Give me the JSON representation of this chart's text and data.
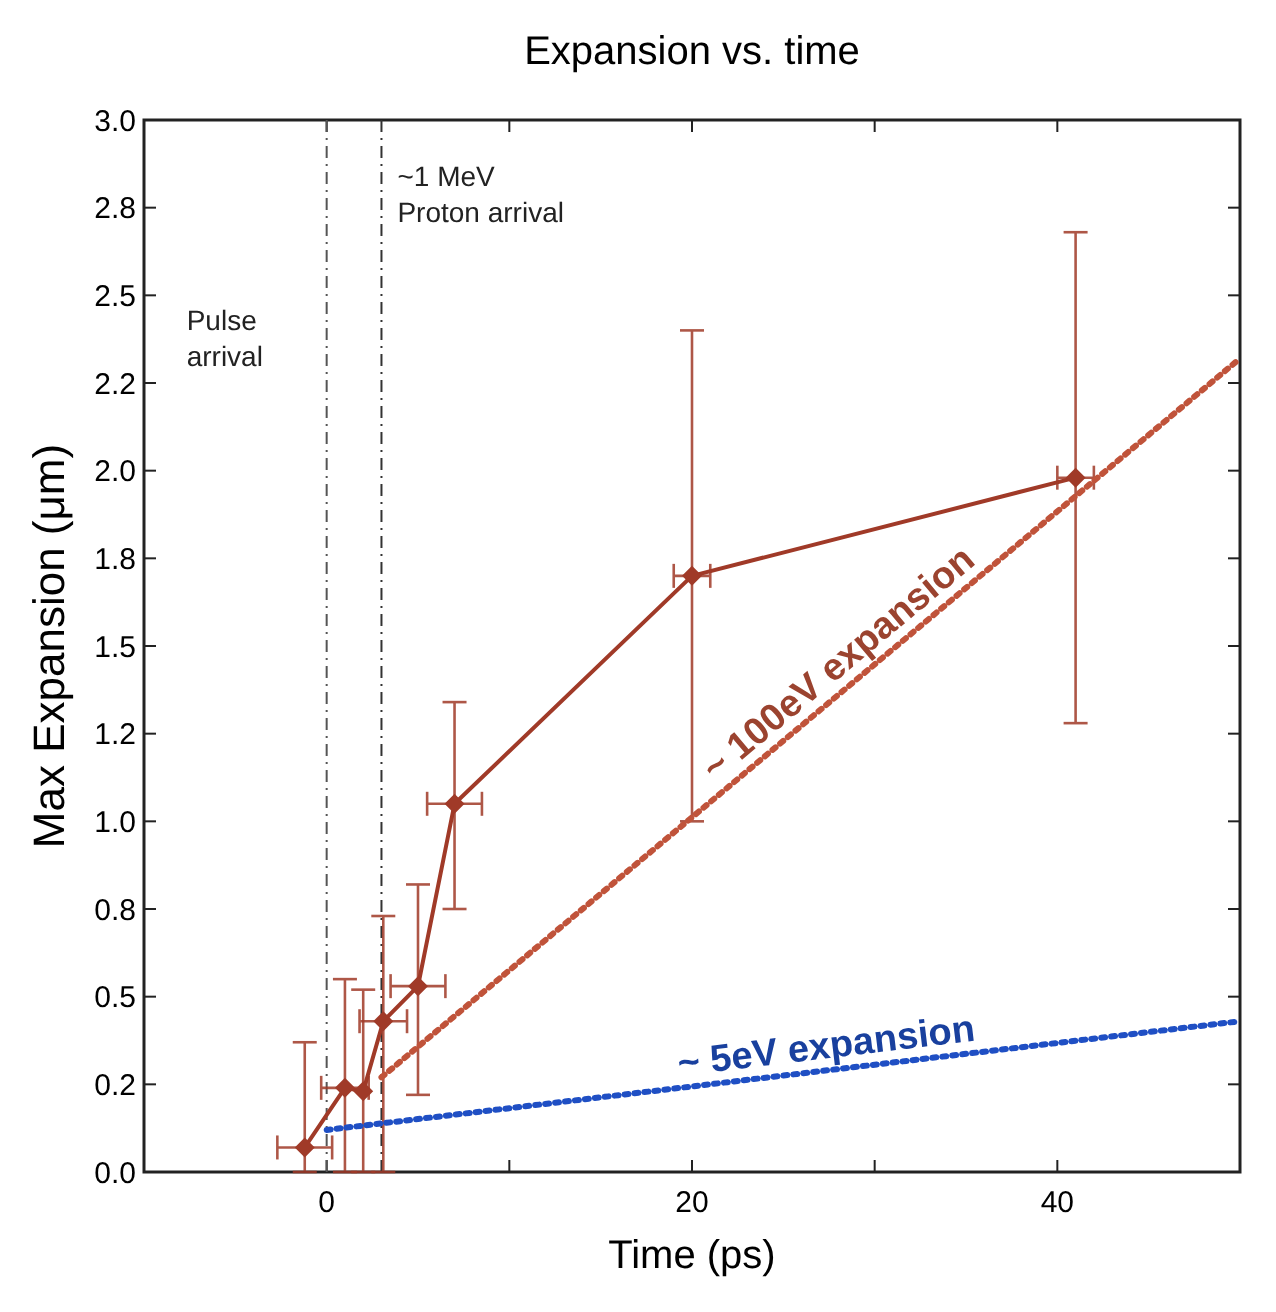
{
  "chart_data": {
    "type": "line",
    "title": "Expansion vs. time",
    "xlabel": "Time (ps)",
    "ylabel": "Max Expansion (μm)",
    "xlim": [
      -10,
      50
    ],
    "xticks": [
      0,
      {
        "value": 10,
        "label": null
      },
      20,
      {
        "value": 30,
        "label": null
      },
      40
    ],
    "ylim": [
      0,
      3
    ],
    "yticks": [
      {
        "value": 0,
        "label": "0.0"
      },
      {
        "value": 0.25,
        "label": "0.2"
      },
      {
        "value": 0.5,
        "label": "0.5"
      },
      {
        "value": 0.75,
        "label": "0.8"
      },
      {
        "value": 1,
        "label": "1.0"
      },
      {
        "value": 1.25,
        "label": "1.2"
      },
      {
        "value": 1.5,
        "label": "1.5"
      },
      {
        "value": 1.75,
        "label": "1.8"
      },
      {
        "value": 2,
        "label": "2.0"
      },
      {
        "value": 2.25,
        "label": "2.2"
      },
      {
        "value": 2.5,
        "label": "2.5"
      },
      {
        "value": 2.75,
        "label": "2.8"
      },
      {
        "value": 3,
        "label": "3.0"
      }
    ],
    "grid": false,
    "series": [
      {
        "color": "#a03a28",
        "marker": "diamond",
        "line_style": "solid",
        "x": [
          -1.2,
          1.0,
          2.0,
          3.1,
          5.0,
          7.0,
          20,
          41
        ],
        "values": [
          0.07,
          0.24,
          0.23,
          0.43,
          0.53,
          1.05,
          1.7,
          1.98
        ],
        "errors": [
          [
            0.0,
            0.37
          ],
          [
            0.0,
            0.55
          ],
          [
            0.0,
            0.52
          ],
          [
            0.0,
            0.73
          ],
          [
            0.22,
            0.82
          ],
          [
            0.75,
            1.34
          ],
          [
            1.0,
            2.4
          ],
          [
            1.28,
            2.68
          ]
        ],
        "xerrors": [
          1.5,
          1.3,
          null,
          1.3,
          1.5,
          1.5,
          1.0,
          1.0
        ]
      },
      {
        "name": "~ 100eV expansion",
        "color": "#c0533a",
        "marker": "none",
        "line_style": "dotted",
        "x": [
          3,
          50
        ],
        "values": [
          0.27,
          2.32
        ]
      },
      {
        "name": "~ 5eV expansion",
        "color": "#1f4fc4",
        "marker": "none",
        "line_style": "dotted",
        "x": [
          0,
          50
        ],
        "values": [
          0.12,
          0.43
        ]
      }
    ],
    "ref_lines": [
      {
        "axis": "x",
        "value": 0,
        "label": "Pulse arrival",
        "color": "#555555",
        "line_style": "dashed"
      },
      {
        "axis": "x",
        "value": 3,
        "label": "~1 MeV Proton arrival",
        "color": "#333333",
        "line_style": "dashed"
      }
    ]
  }
}
